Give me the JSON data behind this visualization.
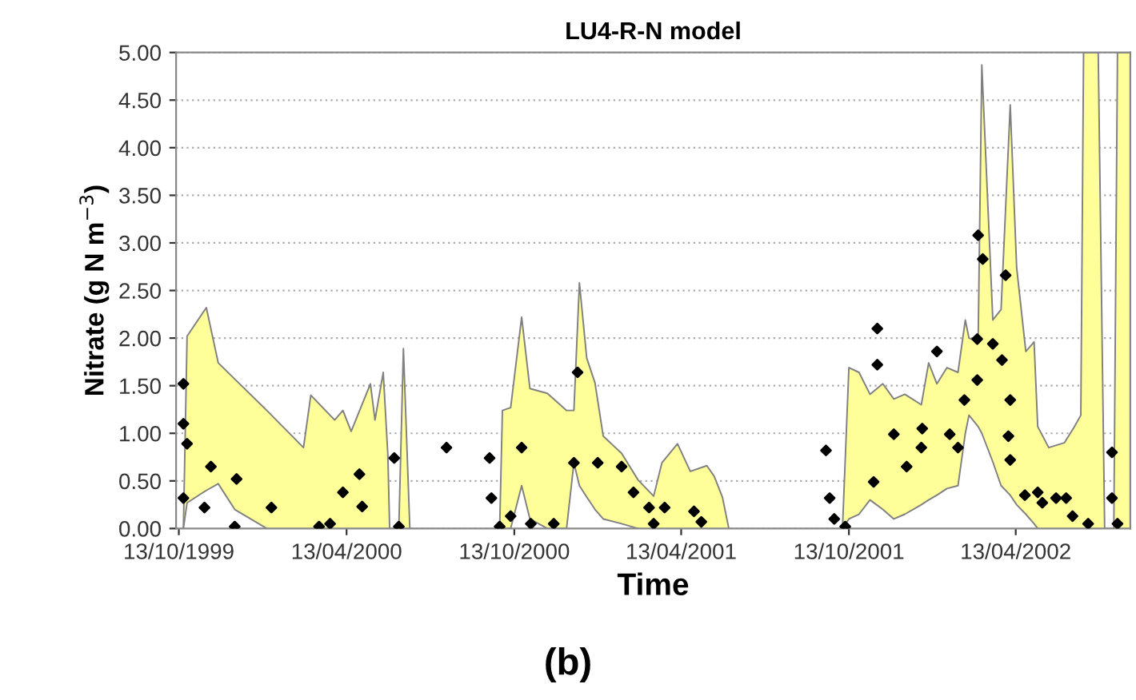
{
  "chart_data": {
    "type": "area",
    "title": "LU4-R-N model",
    "xlabel": "Time",
    "ylabel": "Nitrate (g N m$^{−3}$)",
    "annotations": [
      "(b)"
    ],
    "xlim": [
      "1999-10-10",
      "2002-08-16"
    ],
    "xticks": [
      {
        "value": "1999-10-13",
        "label": "13/10/1999"
      },
      {
        "value": "2000-04-13",
        "label": "13/04/2000"
      },
      {
        "value": "2000-10-13",
        "label": "13/10/2000"
      },
      {
        "value": "2001-04-13",
        "label": "13/04/2001"
      },
      {
        "value": "2001-10-13",
        "label": "13/10/2001"
      },
      {
        "value": "2002-04-13",
        "label": "13/04/2002"
      }
    ],
    "ylim": [
      0,
      5
    ],
    "yticks": [
      {
        "value": 0,
        "label": "0.00"
      },
      {
        "value": 0.5,
        "label": "0.50"
      },
      {
        "value": 1,
        "label": "1.00"
      },
      {
        "value": 1.5,
        "label": "1.50"
      },
      {
        "value": 2,
        "label": "2.00"
      },
      {
        "value": 2.5,
        "label": "2.50"
      },
      {
        "value": 3,
        "label": "3.00"
      },
      {
        "value": 3.5,
        "label": "3.50"
      },
      {
        "value": 4,
        "label": "4.00"
      },
      {
        "value": 4.5,
        "label": "4.50"
      },
      {
        "value": 5,
        "label": "5.00"
      }
    ],
    "grid": "y",
    "series": [
      {
        "color": "#ffff99",
        "x": [
          "1999-10-18",
          "1999-10-22",
          "1999-11-12",
          "1999-11-25",
          "1999-12-13",
          "2000-01-17",
          "2000-02-26",
          "2000-03-05",
          "2000-03-31",
          "2000-04-09",
          "2000-04-18",
          "2000-05-09",
          "2000-05-14",
          "2000-05-23",
          "2000-05-28",
          "2000-05-30",
          "2000-06-01",
          "2000-06-09",
          "2000-06-14",
          "2000-06-21",
          "2000-06-25",
          "2000-09-27",
          "2000-09-30",
          "2000-10-09",
          "2000-10-21",
          "2000-10-30",
          "2000-11-18",
          "2000-12-09",
          "2000-12-17",
          "2000-12-23",
          "2000-12-31",
          "2001-01-09",
          "2001-01-18",
          "2001-02-07",
          "2001-02-25",
          "2001-03-14",
          "2001-03-23",
          "2001-04-09",
          "2001-04-23",
          "2001-05-11",
          "2001-05-19",
          "2001-05-28",
          "2001-06-04",
          "2001-06-10",
          "2001-10-06",
          "2001-10-13",
          "2001-10-24",
          "2001-11-05",
          "2001-11-19",
          "2001-12-01",
          "2001-12-13",
          "2001-12-31",
          "2002-01-08",
          "2002-01-17",
          "2002-01-28",
          "2002-02-09",
          "2002-02-17",
          "2002-02-21",
          "2002-03-03",
          "2002-03-07",
          "2002-03-19",
          "2002-03-28",
          "2002-04-07",
          "2002-04-14",
          "2002-04-24",
          "2002-05-03",
          "2002-05-07",
          "2002-05-19",
          "2002-06-05",
          "2002-06-16",
          "2002-06-23",
          "2002-06-26",
          "2002-07-12",
          "2002-07-19",
          "2002-07-29",
          "2002-08-02",
          "2002-08-16"
        ],
        "values": [
          0,
          2.02,
          2.32,
          1.74,
          1.57,
          1.24,
          0.85,
          1.4,
          1.14,
          1.24,
          1.02,
          1.52,
          1.14,
          1.64,
          0.78,
          0,
          null,
          0,
          1.89,
          0,
          null,
          0,
          1.24,
          1.27,
          2.22,
          1.47,
          1.42,
          1.24,
          1.24,
          2.58,
          1.79,
          1.53,
          0.97,
          0.79,
          0.51,
          0.34,
          0.69,
          0.89,
          0.6,
          0.66,
          0.55,
          0.33,
          0,
          null,
          0,
          1.69,
          1.64,
          1.41,
          1.52,
          1.36,
          1.41,
          1.3,
          1.74,
          1.52,
          1.69,
          1.64,
          2.19,
          2.0,
          1.96,
          4.87,
          2.19,
          2.3,
          4.45,
          2.74,
          1.86,
          1.96,
          1.07,
          0.85,
          0.9,
          1.07,
          1.19,
          5.0,
          5.0,
          0,
          0,
          5.0,
          5.0
        ]
      },
      {
        "color": "#ffffff",
        "x": [
          "1999-10-18",
          "1999-10-22",
          "1999-11-12",
          "1999-11-25",
          "1999-12-13",
          "2000-01-17",
          "2000-06-25",
          "2000-09-27",
          "2000-10-09",
          "2000-10-21",
          "2000-10-30",
          "2000-11-18",
          "2000-12-09",
          "2000-12-17",
          "2000-12-23",
          "2000-12-31",
          "2001-01-09",
          "2001-01-18",
          "2001-02-07",
          "2001-02-25",
          "2001-06-10",
          "2001-10-06",
          "2001-10-13",
          "2001-10-24",
          "2001-11-05",
          "2001-11-19",
          "2001-12-01",
          "2001-12-13",
          "2001-12-31",
          "2002-01-08",
          "2002-01-17",
          "2002-01-28",
          "2002-02-09",
          "2002-02-17",
          "2002-02-21",
          "2002-03-03",
          "2002-03-07",
          "2002-03-19",
          "2002-03-28",
          "2002-04-07",
          "2002-04-14",
          "2002-04-24",
          "2002-05-03",
          "2002-05-07"
        ],
        "values": [
          0,
          0.27,
          0.4,
          0.47,
          0.2,
          0,
          null,
          0,
          0,
          0.45,
          0.1,
          0,
          0,
          0.69,
          0.45,
          0.33,
          0.2,
          0.1,
          0.05,
          0,
          null,
          0,
          0.1,
          0.15,
          0.3,
          0.2,
          0.1,
          0.15,
          0.25,
          0.3,
          0.35,
          0.42,
          0.45,
          1.0,
          1.19,
          1.07,
          1.0,
          0.7,
          0.45,
          0.35,
          0.25,
          0.15,
          0.05,
          0
        ]
      },
      {
        "type": "scatter",
        "color": "#000000",
        "marker": "diamond",
        "x": [
          "1999-10-18",
          "1999-10-18",
          "1999-10-22",
          "1999-10-18",
          "1999-11-17",
          "1999-12-15",
          "1999-11-10",
          "2000-01-22",
          "2000-04-27",
          "2000-04-09",
          "2000-04-30",
          "2000-06-04",
          "2000-07-31",
          "2000-09-16",
          "2000-09-18",
          "1999-12-13",
          "2000-03-14",
          "2000-03-26",
          "2000-06-09",
          "2000-10-21",
          "2000-12-21",
          "2000-12-17",
          "2001-01-12",
          "2001-02-07",
          "2001-02-20",
          "2001-03-09",
          "2001-03-26",
          "2001-04-27",
          "2000-10-09",
          "2000-10-31",
          "2000-11-25",
          "2000-09-27",
          "2001-03-14",
          "2001-05-05",
          "2001-09-18",
          "2001-09-22",
          "2001-09-27",
          "2001-10-09",
          "2001-11-13",
          "2001-11-13",
          "2001-11-09",
          "2001-12-01",
          "2001-12-15",
          "2001-12-31",
          "2002-01-01",
          "2002-01-17",
          "2002-01-31",
          "2002-02-09",
          "2002-02-16",
          "2002-03-02",
          "2002-03-03",
          "2002-03-08",
          "2002-03-02",
          "2002-03-19",
          "2002-04-02",
          "2002-03-29",
          "2002-04-07",
          "2002-04-05",
          "2002-04-07",
          "2002-04-23",
          "2002-05-07",
          "2002-05-12",
          "2002-05-27",
          "2002-06-07",
          "2002-06-14",
          "2002-07-01",
          "2002-07-27",
          "2002-07-27",
          "2002-08-02"
        ],
        "values": [
          1.52,
          1.1,
          0.89,
          0.32,
          0.65,
          0.52,
          0.22,
          0.22,
          0.57,
          0.38,
          0.23,
          0.74,
          0.85,
          0.74,
          0.32,
          0.02,
          0.02,
          0.05,
          0.02,
          0.85,
          1.64,
          0.69,
          0.69,
          0.65,
          0.38,
          0.22,
          0.22,
          0.18,
          0.13,
          0.05,
          0.05,
          0.02,
          0.05,
          0.07,
          0.82,
          0.32,
          0.1,
          0.02,
          2.1,
          1.72,
          0.49,
          0.99,
          0.65,
          0.85,
          1.05,
          1.86,
          0.99,
          0.85,
          1.35,
          1.56,
          3.08,
          2.83,
          1.99,
          1.94,
          2.66,
          1.77,
          1.35,
          0.97,
          0.72,
          0.35,
          0.38,
          0.27,
          0.32,
          0.32,
          0.13,
          0.05,
          0.8,
          0.32,
          0.05
        ]
      }
    ]
  }
}
